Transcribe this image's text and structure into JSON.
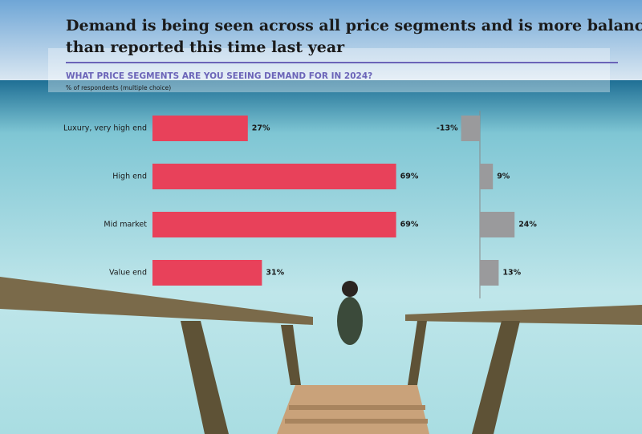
{
  "chart_data": [
    {
      "type": "bar",
      "title": "Demand is being seen across all price segments and is more balanced than reported this time last year",
      "subtitle": "WHAT PRICE SEGMENTS ARE YOU SEEING DEMAND FOR IN 2024?",
      "note": "% of respondents (multiple choice)",
      "categories": [
        "Luxury, very high end",
        "High end",
        "Mid market",
        "Value end"
      ],
      "values": [
        27,
        69,
        69,
        31
      ],
      "value_labels": [
        "27%",
        "69%",
        "69%",
        "31%"
      ],
      "color": "#e8415a"
    },
    {
      "type": "bar",
      "values": [
        -13,
        9,
        24,
        13
      ],
      "value_labels": [
        "-13%",
        "9%",
        "24%",
        "13%"
      ],
      "color": "#9a9a9c"
    }
  ]
}
